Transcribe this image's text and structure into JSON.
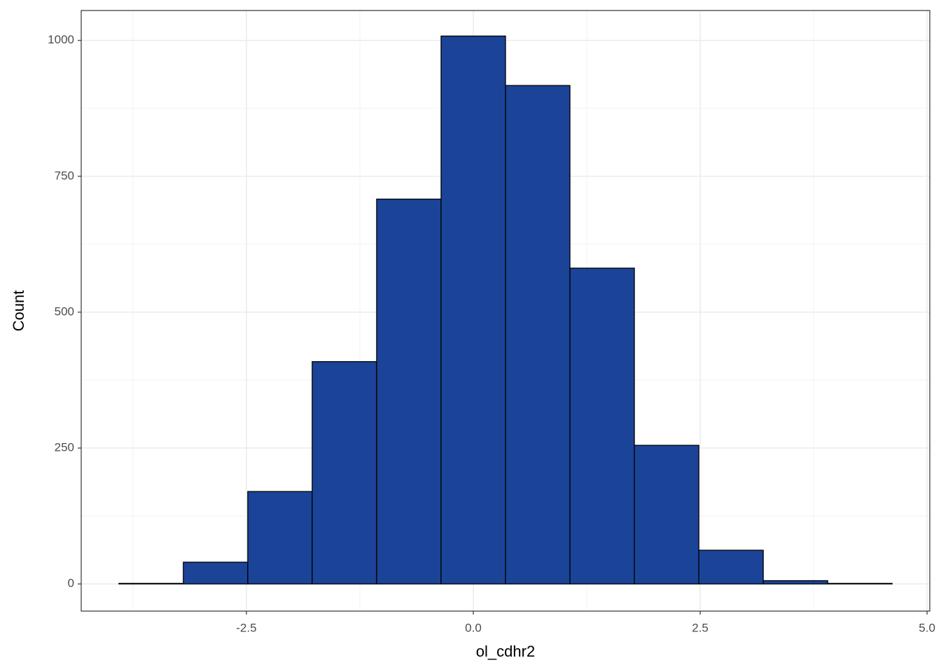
{
  "chart_data": {
    "type": "histogram",
    "x_label": "ol_cdhr2",
    "y_label": "Count",
    "bins": [
      -3.905,
      -3.195,
      -2.485,
      -1.775,
      -1.065,
      -0.355,
      0.355,
      1.065,
      1.775,
      2.485,
      3.195,
      3.905,
      4.615
    ],
    "values": [
      1,
      40,
      170,
      409,
      708,
      1008,
      917,
      581,
      255,
      62,
      6,
      1
    ],
    "color": "#1b4499",
    "edge_color": "#000000",
    "xlim": [
      -4.32,
      5.03
    ],
    "ylim": [
      -50,
      1055
    ],
    "xticks": [
      -2.5,
      {
        "value": 0,
        "label": "0.0"
      },
      2.5,
      {
        "value": 5,
        "label": "5.0"
      }
    ],
    "yticks": [
      0,
      250,
      500,
      750,
      1000
    ],
    "grid": true
  }
}
